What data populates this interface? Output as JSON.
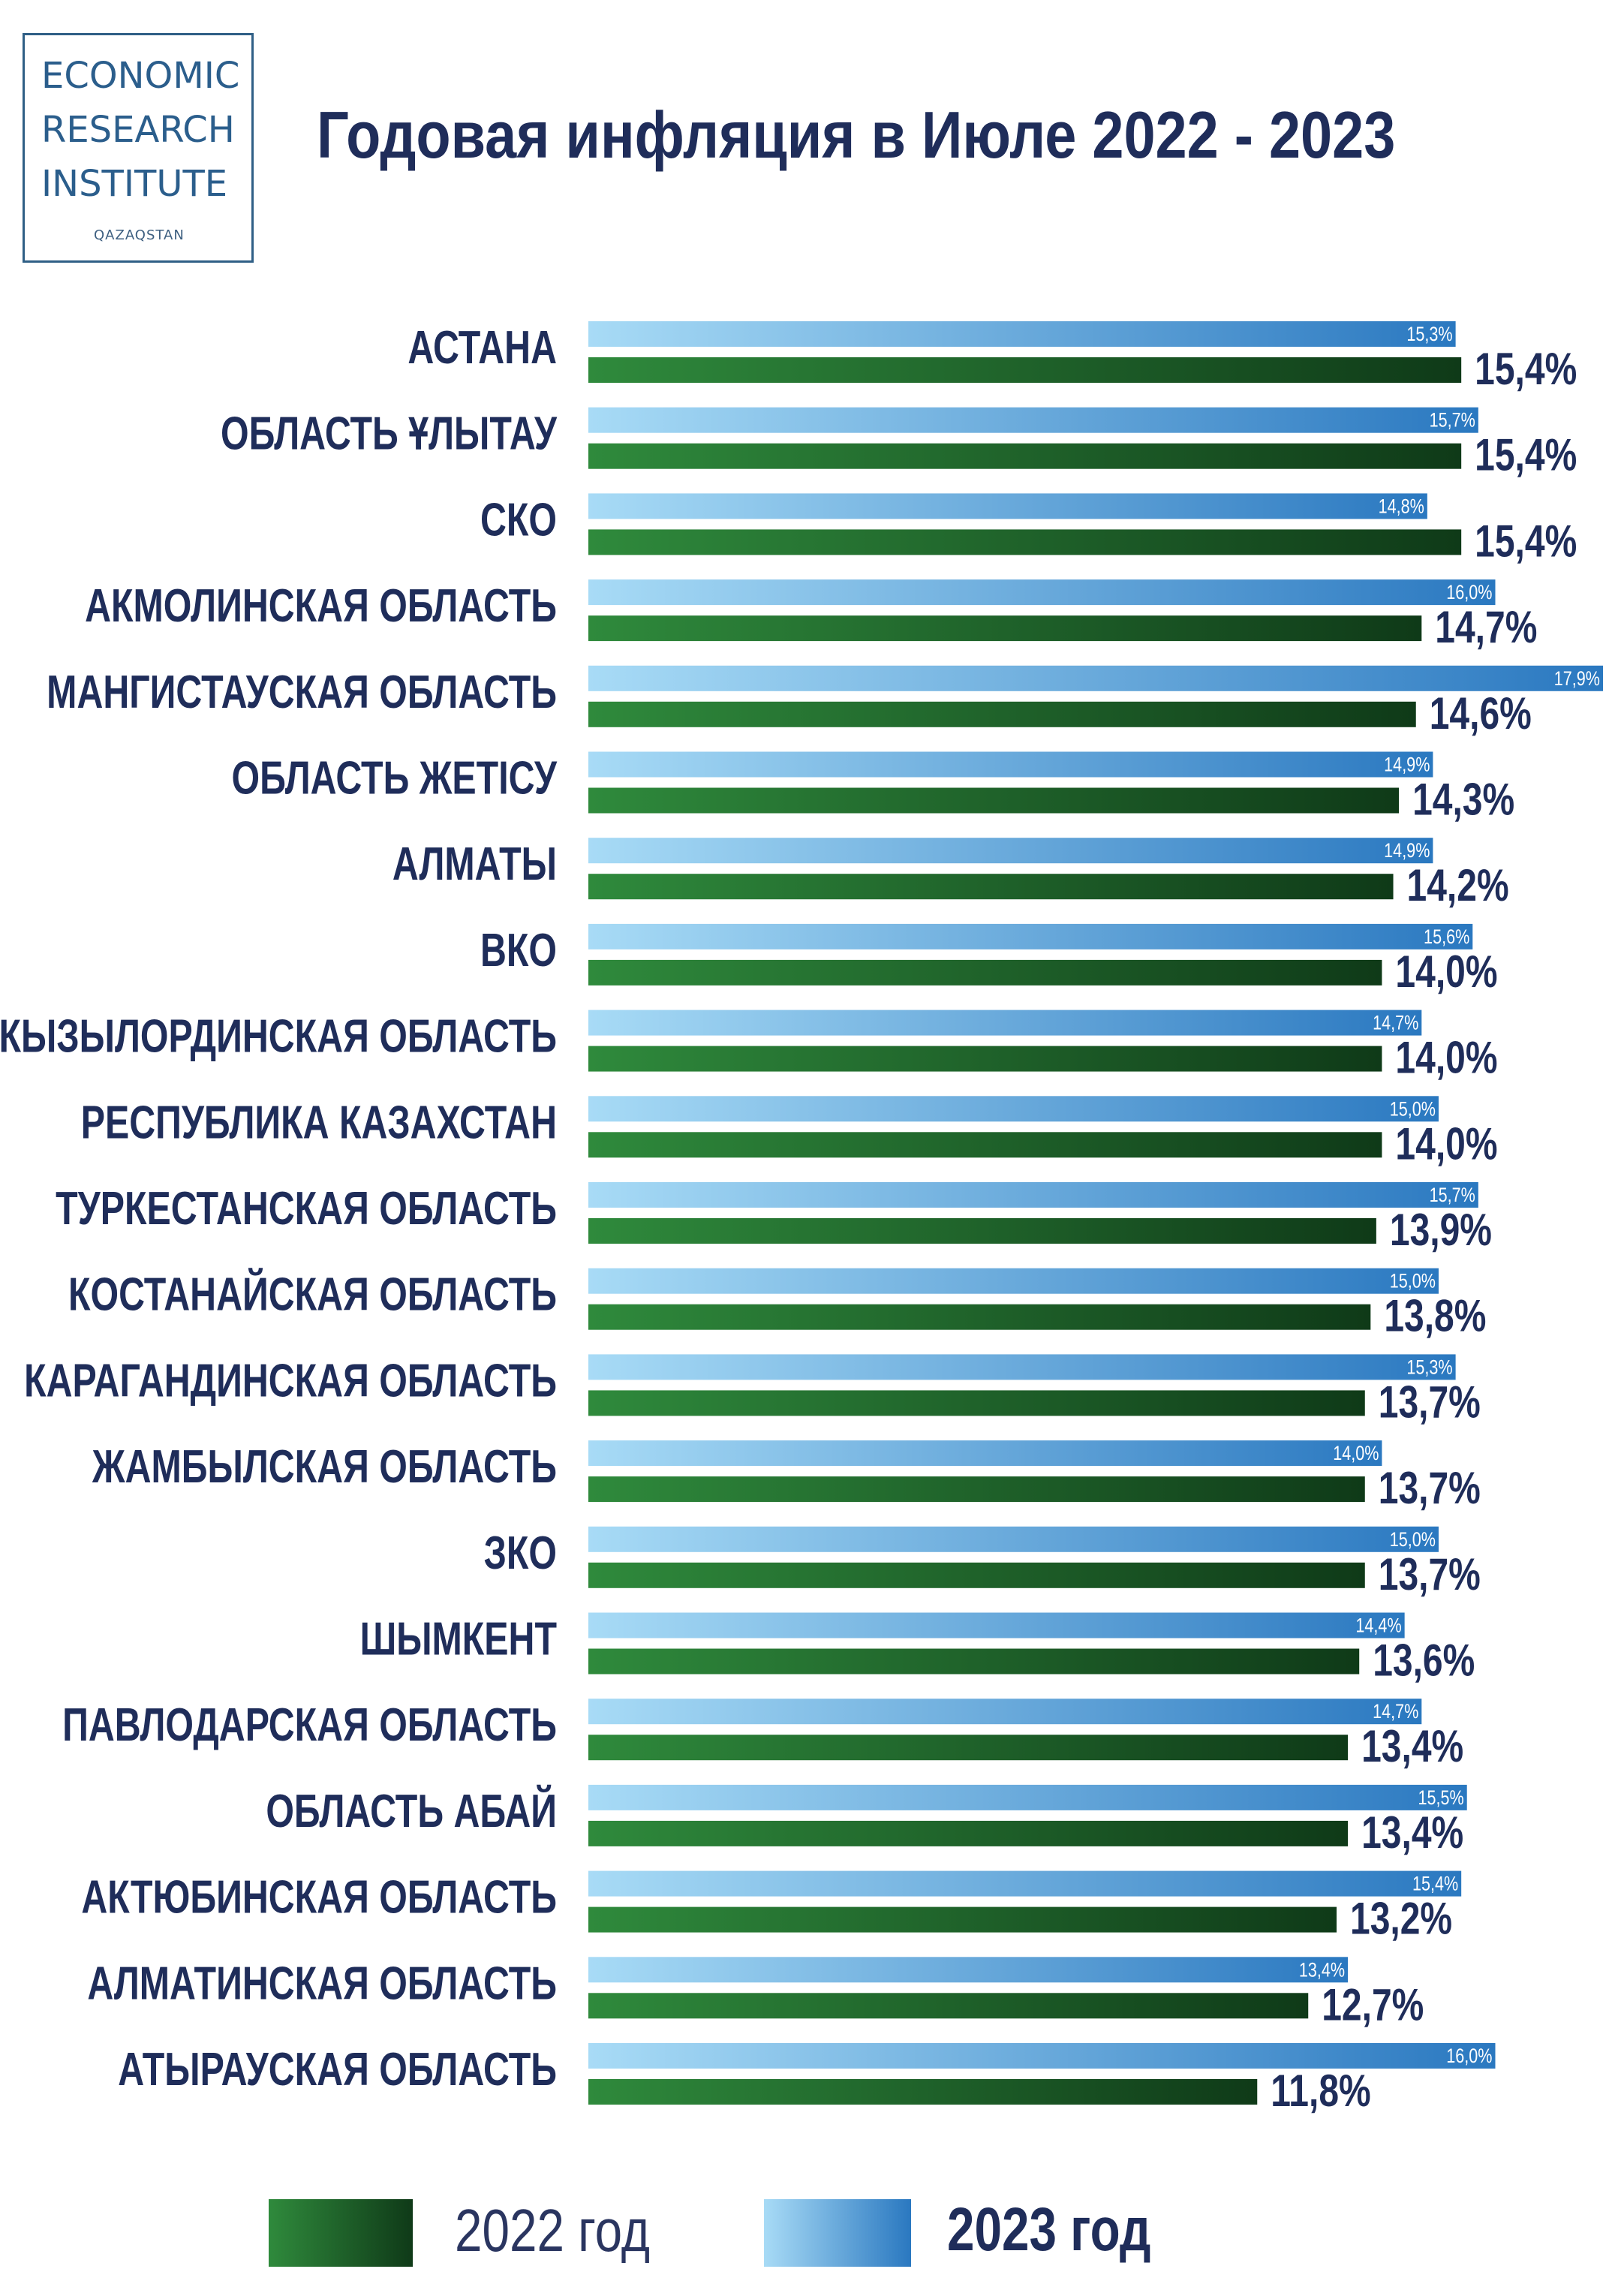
{
  "logo": {
    "line1": "ECONOMIC",
    "line2": "RESEARCH",
    "line3": "INSTITUTE",
    "line4": "QAZAQSTAN"
  },
  "colors": {
    "bar2022_light": "#2f8a3c",
    "bar2022_dark": "#0f3a18",
    "bar2023_light": "#a8dbf6",
    "bar2023_dark": "#2a78c0",
    "label_text": "#1f2d5a"
  },
  "chart_data": {
    "type": "bar",
    "orientation": "horizontal",
    "title": "Годовая инфляция в Июле 2022 - 2023",
    "categories": [
      "АСТАНА",
      "ОБЛАСТЬ ҰЛЫТАУ",
      "СКО",
      "АКМОЛИНСКАЯ ОБЛАСТЬ",
      "МАНГИСТАУСКАЯ ОБЛАСТЬ",
      "ОБЛАСТЬ ЖЕТІСУ",
      "АЛМАТЫ",
      "ВКО",
      "КЫЗЫЛОРДИНСКАЯ ОБЛАСТЬ",
      "РЕСПУБЛИКА КАЗАХСТАН",
      "ТУРКЕСТАНСКАЯ ОБЛАСТЬ",
      "КОСТАНАЙСКАЯ ОБЛАСТЬ",
      "КАРАГАНДИНСКАЯ ОБЛАСТЬ",
      "ЖАМБЫЛСКАЯ ОБЛАСТЬ",
      "ЗКО",
      "ШЫМКЕНТ",
      "ПАВЛОДАРСКАЯ ОБЛАСТЬ",
      "ОБЛАСТЬ АБАЙ",
      "АКТЮБИНСКАЯ ОБЛАСТЬ",
      "АЛМАТИНСКАЯ ОБЛАСТЬ",
      "АТЫРАУСКАЯ ОБЛАСТЬ"
    ],
    "series": [
      {
        "name": "2023 год",
        "values": [
          15.3,
          15.7,
          14.8,
          16.0,
          17.9,
          14.9,
          14.9,
          15.6,
          14.7,
          15.0,
          15.7,
          15.0,
          15.3,
          14.0,
          15.0,
          14.4,
          14.7,
          15.5,
          15.4,
          13.4,
          16.0
        ],
        "labels": [
          "15,3%",
          "15,7%",
          "14,8%",
          "16,0%",
          "17,9%",
          "14,9%",
          "14,9%",
          "15,6%",
          "14,7%",
          "15,0%",
          "15,7%",
          "15,0%",
          "15,3%",
          "14,0%",
          "15,0%",
          "14,4%",
          "14,7%",
          "15,5%",
          "15,4%",
          "13,4%",
          "16,0%"
        ]
      },
      {
        "name": "2022 год",
        "values": [
          15.4,
          15.4,
          15.4,
          14.7,
          14.6,
          14.3,
          14.2,
          14.0,
          14.0,
          14.0,
          13.9,
          13.8,
          13.7,
          13.7,
          13.7,
          13.6,
          13.4,
          13.4,
          13.2,
          12.7,
          11.8
        ],
        "labels": [
          "15,4%",
          "15,4%",
          "15,4%",
          "14,7%",
          "14,6%",
          "14,3%",
          "14,2%",
          "14,0%",
          "14,0%",
          "14,0%",
          "13,9%",
          "13,8%",
          "13,7%",
          "13,7%",
          "13,7%",
          "13,6%",
          "13,4%",
          "13,4%",
          "13,2%",
          "12,7%",
          "11,8%"
        ]
      }
    ],
    "xlim": [
      0,
      17.9
    ],
    "legend_position": "bottom",
    "grid": false
  },
  "legend": {
    "label_2022": "2022 год",
    "label_2023": "2023 год"
  }
}
